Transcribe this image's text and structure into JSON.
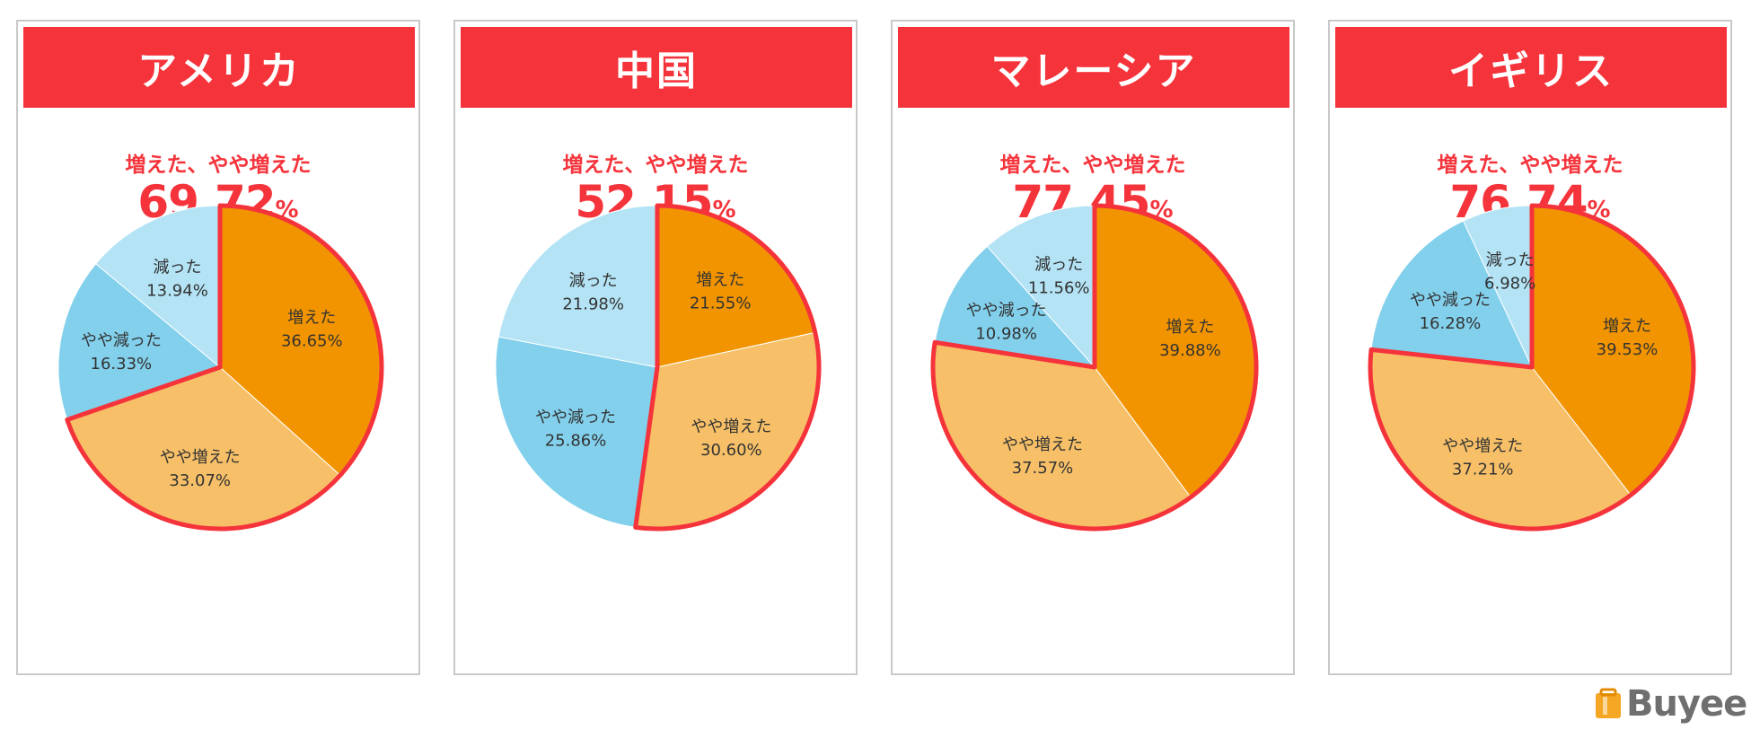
{
  "summary_label": "増えた、やや増えた",
  "percent_sign": "%",
  "brand": "Buyee",
  "colors": {
    "header": "#f5333b",
    "増えた": "#f29400",
    "やや増えた": "#f7c068",
    "やや減った": "#82d0ec",
    "減った": "#b3e3f5",
    "highlight_border": "#f5333b"
  },
  "chart_data": [
    {
      "type": "pie",
      "title": "アメリカ",
      "summary_value": "69.72",
      "slices": [
        {
          "label": "増えた",
          "value": 36.65,
          "value_text": "36.65%",
          "highlight": true
        },
        {
          "label": "やや増えた",
          "value": 33.07,
          "value_text": "33.07%",
          "highlight": true
        },
        {
          "label": "やや減った",
          "value": 16.33,
          "value_text": "16.33%",
          "highlight": false
        },
        {
          "label": "減った",
          "value": 13.94,
          "value_text": "13.94%",
          "highlight": false
        }
      ]
    },
    {
      "type": "pie",
      "title": "中国",
      "summary_value": "52.15",
      "slices": [
        {
          "label": "増えた",
          "value": 21.55,
          "value_text": "21.55%",
          "highlight": true
        },
        {
          "label": "やや増えた",
          "value": 30.6,
          "value_text": "30.60%",
          "highlight": true
        },
        {
          "label": "やや減った",
          "value": 25.86,
          "value_text": "25.86%",
          "highlight": false
        },
        {
          "label": "減った",
          "value": 21.98,
          "value_text": "21.98%",
          "highlight": false
        }
      ]
    },
    {
      "type": "pie",
      "title": "マレーシア",
      "summary_value": "77.45",
      "slices": [
        {
          "label": "増えた",
          "value": 39.88,
          "value_text": "39.88%",
          "highlight": true
        },
        {
          "label": "やや増えた",
          "value": 37.57,
          "value_text": "37.57%",
          "highlight": true
        },
        {
          "label": "やや減った",
          "value": 10.98,
          "value_text": "10.98%",
          "highlight": false
        },
        {
          "label": "減った",
          "value": 11.56,
          "value_text": "11.56%",
          "highlight": false
        }
      ]
    },
    {
      "type": "pie",
      "title": "イギリス",
      "summary_value": "76.74",
      "slices": [
        {
          "label": "増えた",
          "value": 39.53,
          "value_text": "39.53%",
          "highlight": true
        },
        {
          "label": "やや増えた",
          "value": 37.21,
          "value_text": "37.21%",
          "highlight": true
        },
        {
          "label": "やや減った",
          "value": 16.28,
          "value_text": "16.28%",
          "highlight": false
        },
        {
          "label": "減った",
          "value": 6.98,
          "value_text": "6.98%",
          "highlight": false
        }
      ]
    }
  ]
}
